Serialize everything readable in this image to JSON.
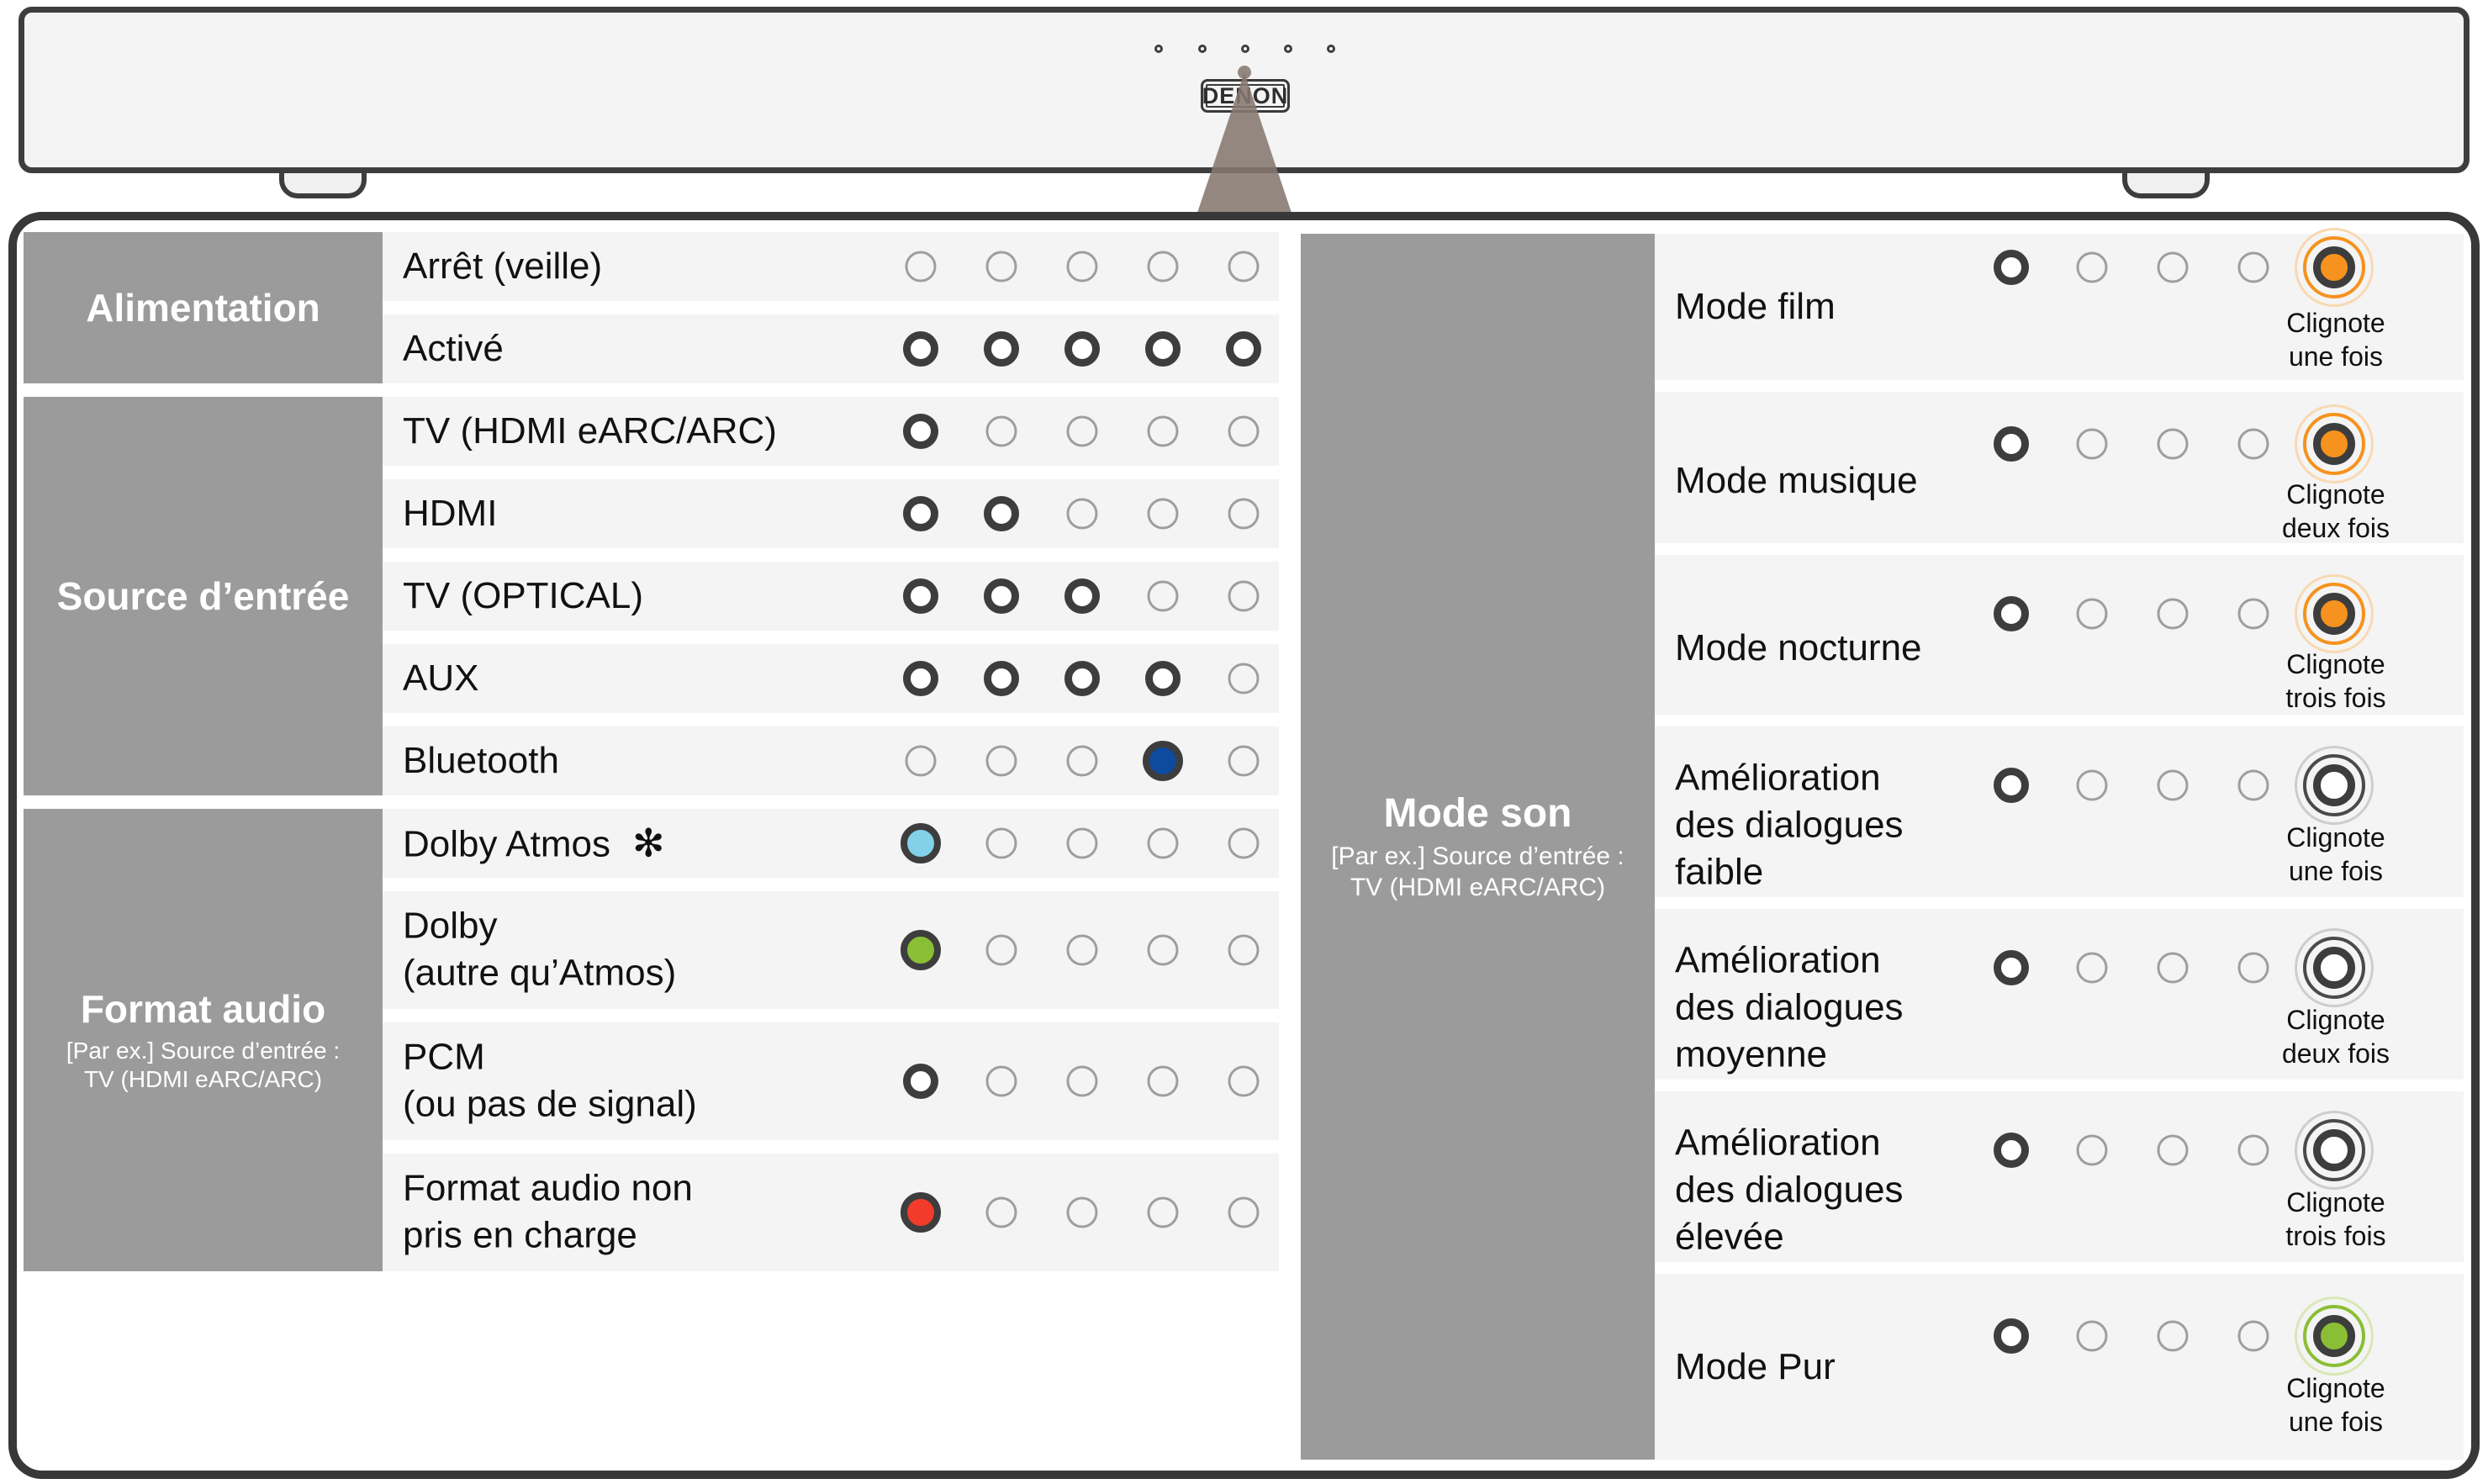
{
  "page": {
    "brand": "DENON"
  },
  "colors": {
    "row_bg": "#f4f4f4",
    "label_block": "#9b9b9b",
    "dark_ring": "#3d3d3d",
    "off_ring": "#9e9e9e",
    "bluetooth_blue": "#0e4a9e",
    "atmos_sky_blue": "#82d1e8",
    "dolby_green": "#8abf35",
    "unsupported_red": "#f23b2b",
    "sound_mode_orange": "#f6921e"
  },
  "power": {
    "title": "Alimentation",
    "rows": [
      {
        "label": "Arrêt (veille)",
        "leds": [
          "off",
          "off",
          "off",
          "off",
          "off"
        ]
      },
      {
        "label": "Activé",
        "leds": [
          "on",
          "on",
          "on",
          "on",
          "on"
        ]
      }
    ]
  },
  "input_source": {
    "title": "Source d’entrée",
    "rows": [
      {
        "label": "TV (HDMI eARC/ARC)",
        "leds": [
          "on",
          "off",
          "off",
          "off",
          "off"
        ]
      },
      {
        "label": "HDMI",
        "leds": [
          "on",
          "on",
          "off",
          "off",
          "off"
        ]
      },
      {
        "label": "TV (OPTICAL)",
        "leds": [
          "on",
          "on",
          "on",
          "off",
          "off"
        ]
      },
      {
        "label": "AUX",
        "leds": [
          "on",
          "on",
          "on",
          "on",
          "off"
        ]
      },
      {
        "label": "Bluetooth",
        "leds": [
          "off",
          "off",
          "off",
          "blue",
          "off"
        ]
      }
    ]
  },
  "audio_format": {
    "title": "Format audio",
    "subtitle": "[Par ex.] Source d’entrée :\nTV (HDMI eARC/ARC)",
    "rows": [
      {
        "label": "Dolby Atmos",
        "note": "✻",
        "leds": [
          "sky",
          "off",
          "off",
          "off",
          "off"
        ]
      },
      {
        "label": "Dolby\n(autre qu’Atmos)",
        "leds": [
          "green",
          "off",
          "off",
          "off",
          "off"
        ]
      },
      {
        "label": "PCM\n(ou pas de signal)",
        "leds": [
          "on",
          "off",
          "off",
          "off",
          "off"
        ]
      },
      {
        "label": "Format audio non\npris en charge",
        "leds": [
          "red",
          "off",
          "off",
          "off",
          "off"
        ]
      }
    ]
  },
  "sound_mode": {
    "title": "Mode son",
    "subtitle": "[Par ex.] Source d’entrée :\nTV (HDMI eARC/ARC)",
    "rows": [
      {
        "label": "Mode film",
        "leds": [
          "on",
          "off",
          "off",
          "off",
          "blink_orange"
        ],
        "blink": "Clignote\nune fois"
      },
      {
        "label": "Mode musique",
        "leds": [
          "on",
          "off",
          "off",
          "off",
          "blink_orange"
        ],
        "blink": "Clignote\ndeux fois"
      },
      {
        "label": "Mode nocturne",
        "leds": [
          "on",
          "off",
          "off",
          "off",
          "blink_orange"
        ],
        "blink": "Clignote\ntrois fois"
      },
      {
        "label": "Amélioration\ndes dialogues\nfaible",
        "leds": [
          "on",
          "off",
          "off",
          "off",
          "blink_white"
        ],
        "blink": "Clignote\nune fois"
      },
      {
        "label": "Amélioration\ndes dialogues\nmoyenne",
        "leds": [
          "on",
          "off",
          "off",
          "off",
          "blink_white"
        ],
        "blink": "Clignote\ndeux fois"
      },
      {
        "label": "Amélioration\ndes dialogues\nélevée",
        "leds": [
          "on",
          "off",
          "off",
          "off",
          "blink_white"
        ],
        "blink": "Clignote\ntrois fois"
      },
      {
        "label": "Mode Pur",
        "leds": [
          "on",
          "off",
          "off",
          "off",
          "blink_green"
        ],
        "blink": "Clignote\nune fois"
      }
    ]
  }
}
